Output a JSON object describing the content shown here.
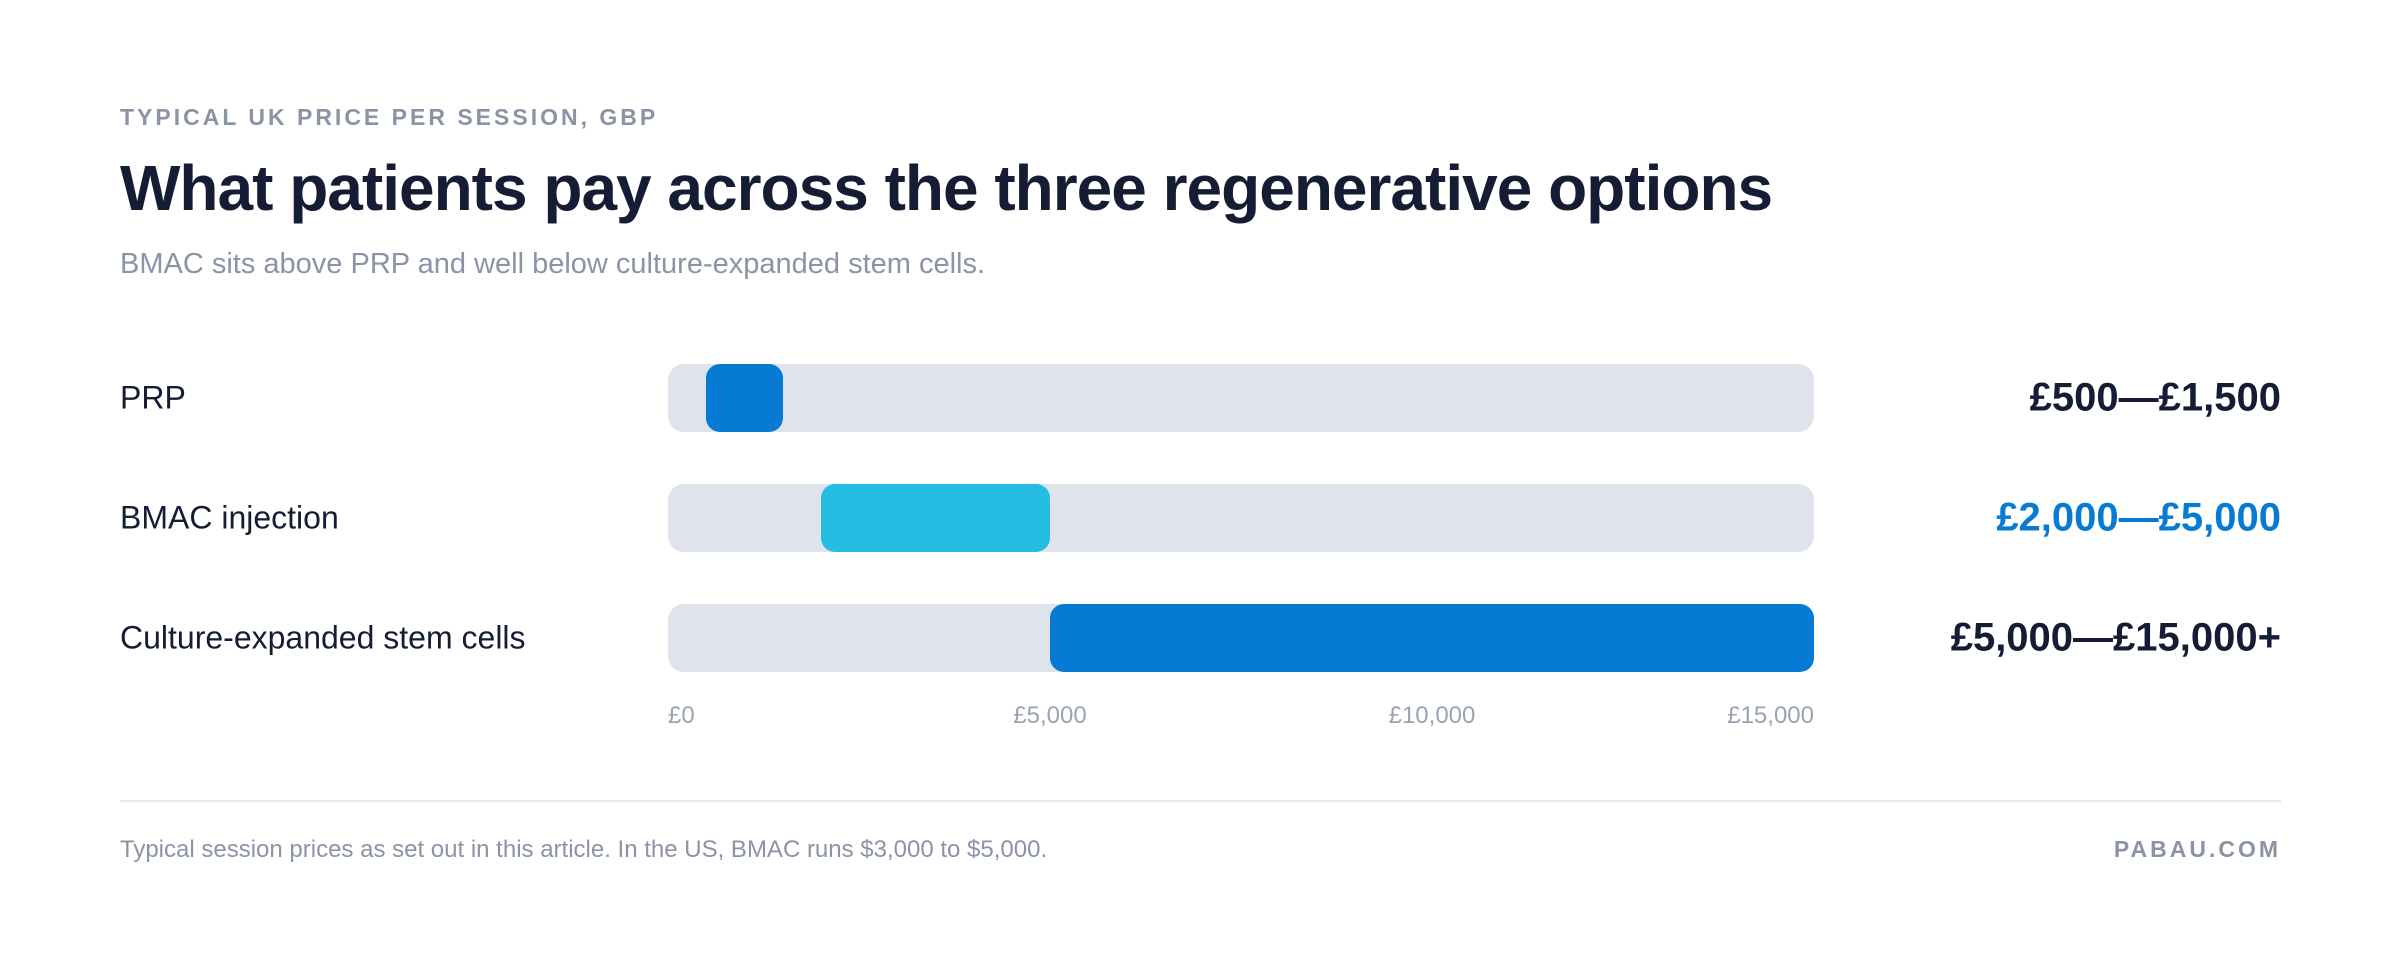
{
  "header": {
    "eyebrow": "TYPICAL UK PRICE PER SESSION, GBP",
    "title": "What patients pay across the three regenerative options",
    "subtitle": "BMAC sits above PRP and well below culture-expanded stem cells."
  },
  "chart_data": {
    "type": "bar",
    "orientation": "horizontal",
    "subtype": "range",
    "categories": [
      "PRP",
      "BMAC injection",
      "Culture-expanded stem cells"
    ],
    "ranges": [
      {
        "low": 500,
        "high": 1500,
        "label": "£500—£1,500",
        "color": "#077bd4",
        "label_color": "#141d33"
      },
      {
        "low": 2000,
        "high": 5000,
        "label": "£2,000—£5,000",
        "color": "#26bde2",
        "label_color": "#077bd4"
      },
      {
        "low": 5000,
        "high": 15000,
        "label": "£5,000—£15,000+",
        "color": "#077bd4",
        "label_color": "#141d33"
      }
    ],
    "xlim": [
      0,
      15000
    ],
    "x_ticks": [
      {
        "value": 0,
        "label": "£0"
      },
      {
        "value": 5000,
        "label": "£5,000"
      },
      {
        "value": 10000,
        "label": "£10,000"
      },
      {
        "value": 15000,
        "label": "£15,000"
      }
    ],
    "track_color": "#dfe3ec",
    "grid": false,
    "legend": "none"
  },
  "footer": {
    "note": "Typical session prices as set out in this article. In the US, BMAC runs $3,000 to $5,000.",
    "brand": "PABAU.COM"
  }
}
